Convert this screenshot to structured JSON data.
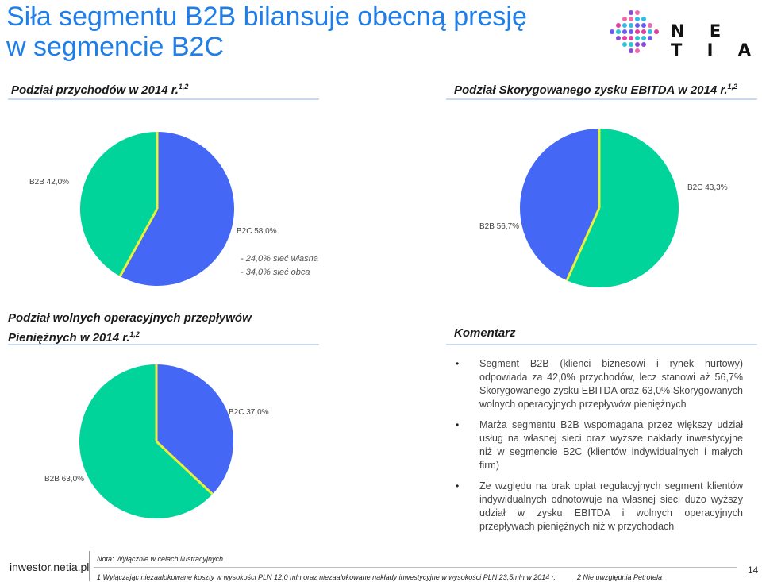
{
  "title_line1": "Siła segmentu B2B bilansuje obecną presję",
  "title_line2": "w segmencie B2C",
  "logo_text": "N E T I A",
  "sections": {
    "revenue_title": "Podział przychodów w  2014 r.",
    "revenue_sup": "1,2",
    "ebitda_title": "Podział Skorygowanego zysku EBITDA w 2014 r.",
    "ebitda_sup": "1,2",
    "cashflow_title_line1": "Podział wolnych operacyjnych przepływów",
    "cashflow_title_line2": "Pieniężnych w 2014 r.",
    "cashflow_sup": "1,2",
    "comment_title": "Komentarz"
  },
  "revenue_sub": [
    "-  24,0% sieć własna",
    "-  34,0% sieć obca"
  ],
  "chart_data": [
    {
      "type": "pie",
      "title": "Podział przychodów w 2014 r.",
      "slices": [
        {
          "label": "B2C 58,0%",
          "name": "B2C",
          "value": 58.0,
          "color": "#4468f5"
        },
        {
          "label": "B2B 42,0%",
          "name": "B2B",
          "value": 42.0,
          "color": "#00d49a"
        }
      ]
    },
    {
      "type": "pie",
      "title": "Podział Skorygowanego zysku EBITDA w 2014 r.",
      "slices": [
        {
          "label": "B2C 43,3%",
          "name": "B2C",
          "value": 43.3,
          "color": "#4468f5"
        },
        {
          "label": "B2B 56,7%",
          "name": "B2B",
          "value": 56.7,
          "color": "#00d49a"
        }
      ]
    },
    {
      "type": "pie",
      "title": "Podział wolnych operacyjnych przepływów Pieniężnych w 2014 r.",
      "slices": [
        {
          "label": "B2C 37,0%",
          "name": "B2C",
          "value": 37.0,
          "color": "#4468f5"
        },
        {
          "label": "B2B 63,0%",
          "name": "B2B",
          "value": 63.0,
          "color": "#00d49a"
        }
      ]
    }
  ],
  "colors": {
    "title": "#1f7ee8",
    "b2c": "#4468f5",
    "b2b": "#00d49a",
    "separator": "#e8f23a"
  },
  "comments": [
    "Segment B2B (klienci biznesowi i rynek hurtowy) odpowiada za 42,0% przychodów, lecz stanowi aż 56,7% Skorygowanego zysku EBITDA oraz 63,0% Skorygowanych wolnych operacyjnych przepływów pieniężnych",
    "Marża segmentu B2B wspomagana przez większy udział usług na własnej sieci oraz wyższe nakłady inwestycyjne niż w segmencie B2C (klientów indywidualnych i małych firm)",
    "Ze względu na brak opłat regulacyjnych segment klientów indywidualnych odnotowuje na własnej sieci dużo wyższy udział w zysku EBITDA i wolnych operacyjnych przepływach pieniężnych niż w przychodach"
  ],
  "footer": {
    "site": "inwestor.netia.pl",
    "note": "Nota: Wyłącznie w celach ilustracyjnych",
    "fn1": "1 Wyłączając niezaalokowane koszty w wysokości PLN 12,0 mln oraz niezaalokowane nakłady inwestycyjne w wysokości PLN 23,5mln w 2014 r.",
    "fn2": "2 Nie uwzględnia Petrotela",
    "page": "14"
  }
}
